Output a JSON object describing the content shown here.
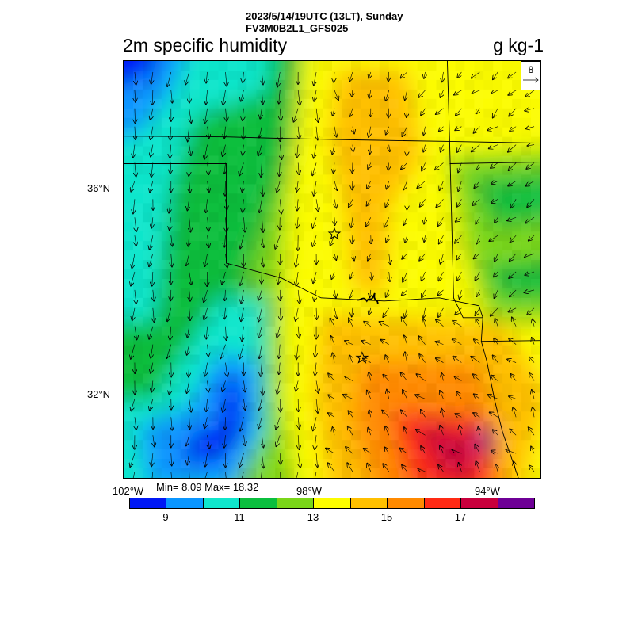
{
  "header": {
    "line1": "2023/5/14/19UTC (13LT), Sunday",
    "line2": "FV3M0B2L1_GFS025",
    "field": "2m specific humidity",
    "units": "g kg-1"
  },
  "axes": {
    "lat_labels": [
      "36°N",
      "32°N"
    ],
    "lon_labels": [
      "102°W",
      "98°W",
      "94°W"
    ]
  },
  "stats": {
    "text": "Min= 8.09 Max= 18.32",
    "min": 8.09,
    "max": 18.32
  },
  "vector_reference": {
    "label": "8"
  },
  "colorbar": {
    "colors": [
      "#0018f5",
      "#0a96ff",
      "#0fe6cc",
      "#0bbf3e",
      "#7ad619",
      "#fcfc00",
      "#ffc000",
      "#ff8a00",
      "#ff2a14",
      "#c8003c",
      "#6e0096"
    ],
    "labels": [
      "9",
      "11",
      "13",
      "15",
      "17"
    ]
  },
  "map": {
    "projection": "lat-lon",
    "markers": [
      "star",
      "star"
    ]
  }
}
